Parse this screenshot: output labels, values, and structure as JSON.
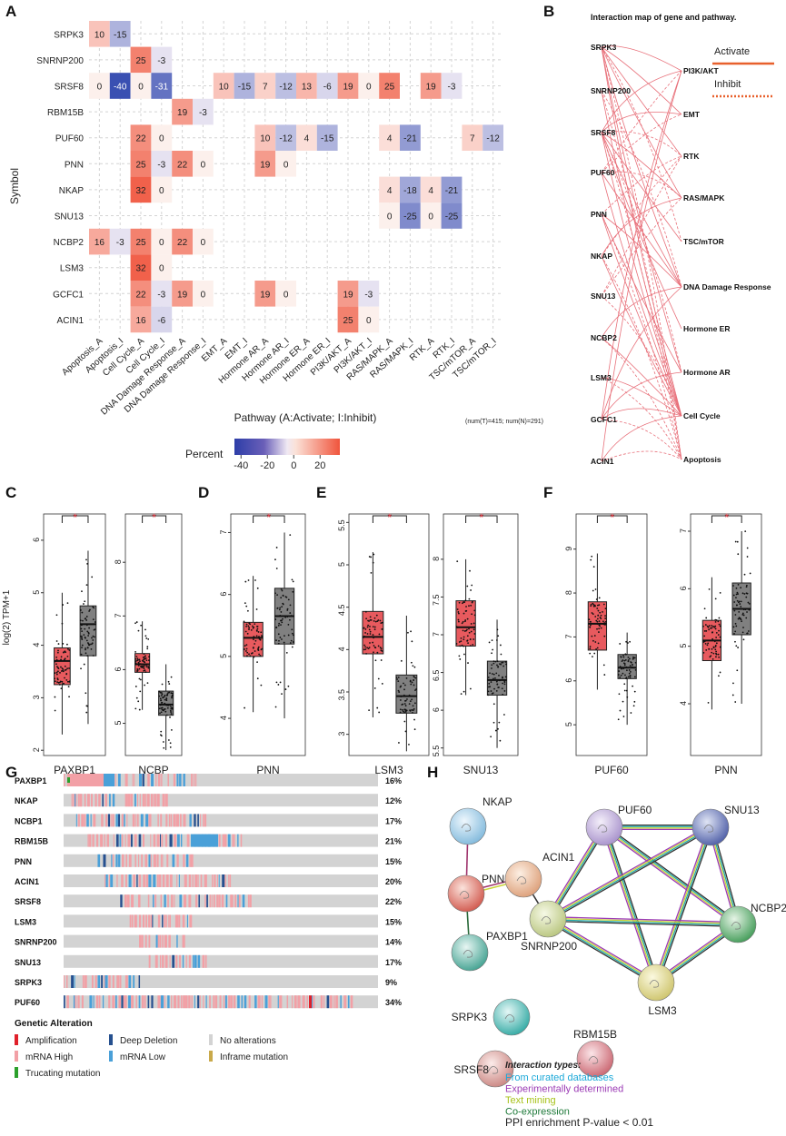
{
  "panel_labels": [
    "A",
    "B",
    "C",
    "D",
    "E",
    "F",
    "G",
    "H"
  ],
  "chart_data": [
    {
      "panel": "A",
      "type": "heatmap",
      "ylabel": "Symbol",
      "xlabel": "Pathway (A:Activate; I:Inhibit)",
      "note": "(num(T)=415; num(N)=291)",
      "legend_title": "Percent",
      "legend_ticks": [
        "-40",
        "-20",
        "0",
        "20"
      ],
      "range": [
        -45,
        35
      ],
      "rows": [
        "SRPK3",
        "SNRNP200",
        "SRSF8",
        "RBM15B",
        "PUF60",
        "PNN",
        "NKAP",
        "SNU13",
        "NCBP2",
        "LSM3",
        "GCFC1",
        "ACIN1"
      ],
      "columns": [
        "Apoptosis_A",
        "Apoptosis_I",
        "Cell Cycle_A",
        "Cell Cycle_I",
        "DNA Damage Response_A",
        "DNA Damage Response_I",
        "EMT_A",
        "EMT_I",
        "Hormone AR_A",
        "Hormone AR_I",
        "Hormone ER_A",
        "Hormone ER_I",
        "PI3K/AKT_A",
        "PI3K/AKT_I",
        "RAS/MAPK_A",
        "RAS/MAPK_I",
        "RTK_A",
        "RTK_I",
        "TSC/mTOR_A",
        "TSC/mTOR_I"
      ],
      "cells": [
        [
          0,
          0,
          10
        ],
        [
          0,
          1,
          -15
        ],
        [
          1,
          2,
          25
        ],
        [
          1,
          3,
          -3
        ],
        [
          2,
          0,
          0
        ],
        [
          2,
          1,
          -40
        ],
        [
          2,
          2,
          0
        ],
        [
          2,
          3,
          -31
        ],
        [
          2,
          6,
          10
        ],
        [
          2,
          7,
          -15
        ],
        [
          2,
          8,
          7
        ],
        [
          2,
          9,
          -12
        ],
        [
          2,
          10,
          13
        ],
        [
          2,
          11,
          -6
        ],
        [
          2,
          12,
          19
        ],
        [
          2,
          13,
          0
        ],
        [
          2,
          14,
          25
        ],
        [
          2,
          16,
          19
        ],
        [
          2,
          17,
          -3
        ],
        [
          3,
          4,
          19
        ],
        [
          3,
          5,
          -3
        ],
        [
          4,
          2,
          22
        ],
        [
          4,
          3,
          0
        ],
        [
          4,
          8,
          10
        ],
        [
          4,
          9,
          -12
        ],
        [
          4,
          10,
          4
        ],
        [
          4,
          11,
          -15
        ],
        [
          4,
          14,
          4
        ],
        [
          4,
          15,
          -21
        ],
        [
          4,
          18,
          7
        ],
        [
          4,
          19,
          -12
        ],
        [
          5,
          2,
          25
        ],
        [
          5,
          3,
          -3
        ],
        [
          5,
          4,
          22
        ],
        [
          5,
          5,
          0
        ],
        [
          5,
          8,
          19
        ],
        [
          5,
          9,
          0
        ],
        [
          6,
          2,
          32
        ],
        [
          6,
          3,
          0
        ],
        [
          6,
          14,
          4
        ],
        [
          6,
          15,
          -18
        ],
        [
          6,
          16,
          4
        ],
        [
          6,
          17,
          -21
        ],
        [
          7,
          14,
          0
        ],
        [
          7,
          15,
          -25
        ],
        [
          7,
          16,
          0
        ],
        [
          7,
          17,
          -25
        ],
        [
          8,
          0,
          16
        ],
        [
          8,
          1,
          -3
        ],
        [
          8,
          2,
          25
        ],
        [
          8,
          3,
          0
        ],
        [
          8,
          4,
          22
        ],
        [
          8,
          5,
          0
        ],
        [
          9,
          2,
          32
        ],
        [
          9,
          3,
          0
        ],
        [
          10,
          2,
          22
        ],
        [
          10,
          3,
          -3
        ],
        [
          10,
          4,
          19
        ],
        [
          10,
          5,
          0
        ],
        [
          10,
          8,
          19
        ],
        [
          10,
          9,
          0
        ],
        [
          10,
          12,
          19
        ],
        [
          10,
          13,
          -3
        ],
        [
          11,
          2,
          16
        ],
        [
          11,
          3,
          -6
        ],
        [
          11,
          12,
          25
        ],
        [
          11,
          13,
          0
        ]
      ]
    },
    {
      "panel": "B",
      "type": "network",
      "title": "Interaction map of gene and pathway.",
      "legend": [
        "Activate",
        "Inhibit"
      ],
      "genes": [
        "SRPK3",
        "SNRNP200",
        "SRSF8",
        "PUF60",
        "PNN",
        "NKAP",
        "SNU13",
        "NCBP2",
        "LSM3",
        "GCFC1",
        "ACIN1"
      ],
      "pathways": [
        "PI3K/AKT",
        "EMT",
        "RTK",
        "RAS/MAPK",
        "TSC/mTOR",
        "DNA Damage Response",
        "Hormone ER",
        "Hormone AR",
        "Cell Cycle",
        "Apoptosis"
      ]
    },
    {
      "panel": "C-F",
      "type": "box",
      "ylabel": "log(2) TPM+1",
      "sig_label": "*",
      "colors": {
        "tumor": "#e85a5e",
        "normal": "#808080"
      },
      "plots": [
        {
          "gene": "PAXBP1",
          "ylim": [
            1.9,
            6.5
          ],
          "ticks": [
            2,
            3,
            4,
            5,
            6
          ],
          "tumor": [
            2.3,
            3.25,
            3.7,
            3.95,
            5.0
          ],
          "normal": [
            2.5,
            3.8,
            4.4,
            4.75,
            5.8
          ]
        },
        {
          "gene": "NCBP",
          "ylim": [
            4.4,
            8.9
          ],
          "ticks": [
            5,
            6,
            7,
            8
          ],
          "tumor": [
            5.25,
            5.95,
            6.1,
            6.3,
            6.9
          ],
          "normal": [
            4.5,
            5.15,
            5.35,
            5.6,
            6.1
          ]
        },
        {
          "gene": "PNN",
          "ylim": [
            3.4,
            7.3
          ],
          "ticks": [
            4,
            5,
            6,
            7
          ],
          "tumor": [
            4.1,
            5.0,
            5.3,
            5.55,
            6.3
          ],
          "normal": [
            4.0,
            5.2,
            5.65,
            6.1,
            7.0
          ]
        },
        {
          "gene": "LSM3",
          "ylim": [
            2.75,
            5.6
          ],
          "ticks": [
            3.0,
            3.5,
            4.0,
            4.5,
            5.0,
            5.5
          ],
          "tumor": [
            3.2,
            3.95,
            4.15,
            4.45,
            5.15
          ],
          "normal": [
            2.8,
            3.25,
            3.45,
            3.7,
            4.4
          ]
        },
        {
          "gene": "SNU13",
          "ylim": [
            5.4,
            8.6
          ],
          "ticks": [
            5.5,
            6.0,
            6.5,
            7.0,
            7.5,
            8.0
          ],
          "tumor": [
            6.2,
            6.85,
            7.1,
            7.45,
            8.0
          ],
          "normal": [
            5.5,
            6.2,
            6.4,
            6.65,
            7.2
          ]
        },
        {
          "gene": "PUF60",
          "ylim": [
            4.3,
            9.8
          ],
          "ticks": [
            5,
            6,
            7,
            8,
            9
          ],
          "tumor": [
            5.8,
            6.7,
            7.3,
            7.8,
            8.9
          ],
          "normal": [
            5.0,
            6.05,
            6.3,
            6.6,
            7.1
          ]
        },
        {
          "gene": "PNN",
          "ylim": [
            3.1,
            7.3
          ],
          "ticks": [
            4,
            5,
            6,
            7
          ],
          "tumor": [
            3.9,
            4.75,
            5.1,
            5.45,
            6.2
          ],
          "normal": [
            4.0,
            5.2,
            5.65,
            6.1,
            7.0
          ]
        }
      ]
    },
    {
      "panel": "G",
      "type": "oncoprint",
      "genes": [
        "PAXBP1",
        "NKAP",
        "NCBP1",
        "RBM15B",
        "PNN",
        "ACIN1",
        "SRSF8",
        "LSM3",
        "SNRNP200",
        "SNU13",
        "SRPK3",
        "PUF60"
      ],
      "percents": [
        "16%",
        "12%",
        "17%",
        "21%",
        "15%",
        "20%",
        "22%",
        "15%",
        "14%",
        "17%",
        "9%",
        "34%"
      ],
      "legend_title": "Genetic Alteration",
      "legend_items": [
        "Amplification",
        "Deep Deletion",
        "No alterations",
        "mRNA High",
        "mRNA Low",
        "Inframe mutation",
        "Trucating mutation"
      ]
    },
    {
      "panel": "H",
      "type": "ppi-network",
      "nodes": [
        "NKAP",
        "PNN",
        "ACIN1",
        "PUF60",
        "SNU13",
        "PAXBP1",
        "SNRNP200",
        "NCBP2",
        "LSM3",
        "SRPK3",
        "SRSF8",
        "RBM15B"
      ],
      "legend_title": "Interaction types:",
      "legend_items": [
        "From curated databases",
        "Experimentally determined",
        "Text mining",
        "Co-expression"
      ],
      "enrichment_text": "PPI enrichment P-value < 0.01"
    }
  ]
}
